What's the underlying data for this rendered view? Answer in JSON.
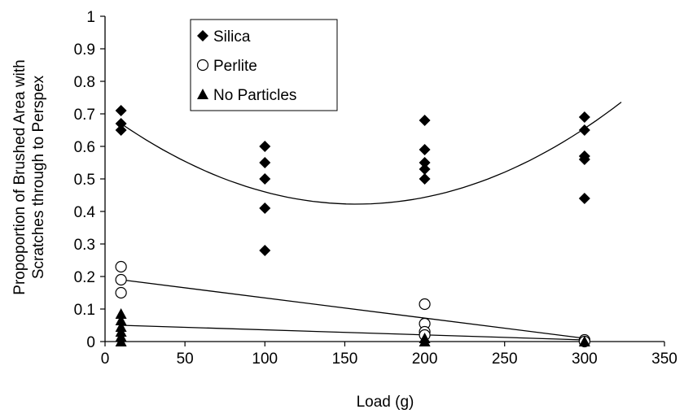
{
  "chart_data": {
    "type": "scatter",
    "title": "",
    "xlabel": "Load (g)",
    "ylabel_lines": [
      "Propoportion of Brushed Area with",
      "Scratches through to Perspex"
    ],
    "xlim": [
      0,
      350
    ],
    "ylim": [
      0,
      1
    ],
    "x_ticks": [
      "0",
      "50",
      "100",
      "150",
      "200",
      "250",
      "300",
      "350"
    ],
    "y_ticks": [
      "0",
      "0.1",
      "0.2",
      "0.3",
      "0.4",
      "0.5",
      "0.6",
      "0.7",
      "0.8",
      "0.9",
      "1"
    ],
    "grid": false,
    "legend_position": "top-left",
    "series": [
      {
        "name": "Silica",
        "marker": "diamond",
        "color": "#000000",
        "points": [
          [
            10,
            0.71
          ],
          [
            10,
            0.67
          ],
          [
            10,
            0.65
          ],
          [
            100,
            0.6
          ],
          [
            100,
            0.55
          ],
          [
            100,
            0.5
          ],
          [
            100,
            0.41
          ],
          [
            100,
            0.28
          ],
          [
            200,
            0.68
          ],
          [
            200,
            0.59
          ],
          [
            200,
            0.55
          ],
          [
            200,
            0.53
          ],
          [
            200,
            0.5
          ],
          [
            300,
            0.69
          ],
          [
            300,
            0.65
          ],
          [
            300,
            0.57
          ],
          [
            300,
            0.56
          ],
          [
            300,
            0.44
          ]
        ],
        "trend": {
          "kind": "polynomial2",
          "x_range": [
            10,
            323
          ],
          "points": [
            [
              10,
              0.67
            ],
            [
              100,
              0.46
            ],
            [
              200,
              0.535
            ],
            [
              300,
              0.655
            ]
          ]
        }
      },
      {
        "name": "Perlite",
        "marker": "circle",
        "color": "#000000",
        "points": [
          [
            10,
            0.23
          ],
          [
            10,
            0.19
          ],
          [
            10,
            0.15
          ],
          [
            200,
            0.115
          ],
          [
            200,
            0.055
          ],
          [
            200,
            0.03
          ],
          [
            200,
            0.02
          ],
          [
            300,
            0.005
          ],
          [
            300,
            0.0
          ]
        ],
        "trend": {
          "kind": "linear",
          "x_range": [
            10,
            300
          ],
          "y_range": [
            0.19,
            0.01
          ]
        }
      },
      {
        "name": "No Particles",
        "marker": "triangle",
        "color": "#000000",
        "points": [
          [
            10,
            0.085
          ],
          [
            10,
            0.065
          ],
          [
            10,
            0.045
          ],
          [
            10,
            0.03
          ],
          [
            10,
            0.015
          ],
          [
            10,
            0.0
          ],
          [
            200,
            0.01
          ],
          [
            200,
            0.0
          ],
          [
            300,
            0.0
          ]
        ],
        "trend": {
          "kind": "linear",
          "x_range": [
            10,
            300
          ],
          "y_range": [
            0.05,
            0.005
          ]
        }
      }
    ]
  }
}
